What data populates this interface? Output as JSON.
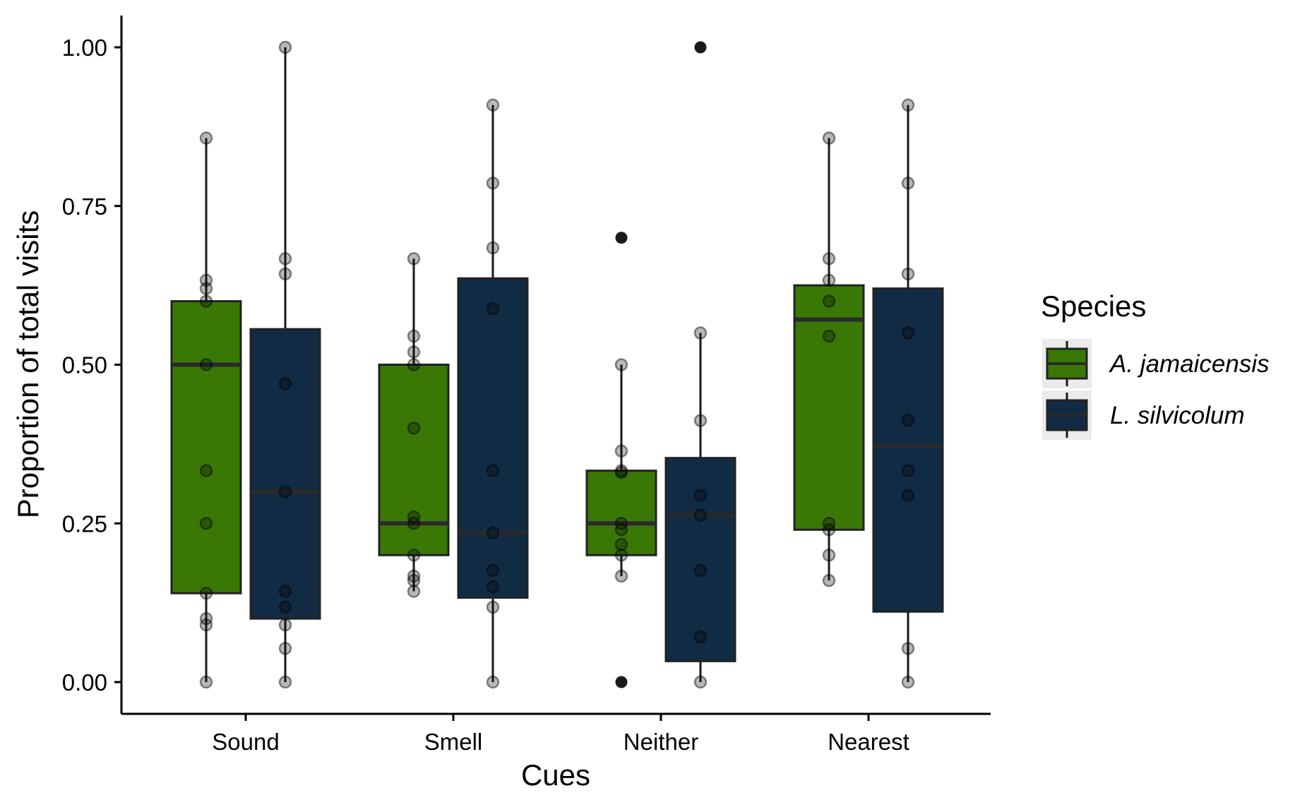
{
  "chart_data": {
    "type": "boxplot",
    "title": "",
    "xlabel": "Cues",
    "ylabel": "Proportion of total visits",
    "categories": [
      "Sound",
      "Smell",
      "Neither",
      "Nearest"
    ],
    "ylim": [
      -0.05,
      1.05
    ],
    "yticks": [
      0,
      0.25,
      0.5,
      0.75,
      1.0
    ],
    "ytick_labels": [
      "0.00",
      "0.25",
      "0.50",
      "0.75",
      "1.00"
    ],
    "grid": false,
    "legend": {
      "title": "Species",
      "position": "right",
      "entries": [
        "A. jamaicensis",
        "L. silvicolum"
      ]
    },
    "series": [
      {
        "name": "A. jamaicensis",
        "color": "#3a7806",
        "boxes": [
          {
            "category": "Sound",
            "q1": 0.14,
            "median": 0.5,
            "q3": 0.6,
            "whisker_low": 0.0,
            "whisker_high": 0.857,
            "outliers": [],
            "points": [
              0.857,
              0.633,
              0.62,
              0.6,
              0.5,
              0.333,
              0.25,
              0.14,
              0.1,
              0.09,
              0.0
            ]
          },
          {
            "category": "Smell",
            "q1": 0.2,
            "median": 0.25,
            "q3": 0.5,
            "whisker_low": 0.143,
            "whisker_high": 0.667,
            "outliers": [],
            "points": [
              0.667,
              0.545,
              0.52,
              0.5,
              0.4,
              0.26,
              0.25,
              0.2,
              0.167,
              0.16,
              0.143
            ]
          },
          {
            "category": "Neither",
            "q1": 0.2,
            "median": 0.25,
            "q3": 0.333,
            "whisker_low": 0.167,
            "whisker_high": 0.5,
            "outliers": [
              0.7,
              0.0
            ],
            "points": [
              0.5,
              0.364,
              0.333,
              0.33,
              0.25,
              0.24,
              0.217,
              0.2,
              0.167
            ]
          },
          {
            "category": "Nearest",
            "q1": 0.24,
            "median": 0.571,
            "q3": 0.625,
            "whisker_low": 0.16,
            "whisker_high": 0.857,
            "outliers": [],
            "points": [
              0.857,
              0.667,
              0.633,
              0.6,
              0.545,
              0.25,
              0.24,
              0.2,
              0.16
            ]
          }
        ]
      },
      {
        "name": "L. silvicolum",
        "color": "#122b45",
        "boxes": [
          {
            "category": "Sound",
            "q1": 0.1,
            "median": 0.3,
            "q3": 0.556,
            "whisker_low": 0.0,
            "whisker_high": 1.0,
            "outliers": [],
            "points": [
              1.0,
              0.667,
              0.643,
              0.47,
              0.3,
              0.143,
              0.118,
              0.09,
              0.053,
              0.0
            ]
          },
          {
            "category": "Smell",
            "q1": 0.133,
            "median": 0.235,
            "q3": 0.636,
            "whisker_low": 0.0,
            "whisker_high": 0.909,
            "outliers": [],
            "points": [
              0.909,
              0.786,
              0.684,
              0.588,
              0.333,
              0.235,
              0.176,
              0.15,
              0.118,
              0.0
            ]
          },
          {
            "category": "Neither",
            "q1": 0.033,
            "median": 0.263,
            "q3": 0.353,
            "whisker_low": 0.0,
            "whisker_high": 0.55,
            "outliers": [
              1.0
            ],
            "points": [
              0.55,
              0.412,
              0.294,
              0.263,
              0.176,
              0.071,
              0.0
            ]
          },
          {
            "category": "Nearest",
            "q1": 0.111,
            "median": 0.372,
            "q3": 0.62,
            "whisker_low": 0.0,
            "whisker_high": 0.909,
            "outliers": [],
            "points": [
              0.909,
              0.786,
              0.643,
              0.55,
              0.412,
              0.333,
              0.294,
              0.053,
              0.0
            ]
          }
        ]
      }
    ]
  }
}
